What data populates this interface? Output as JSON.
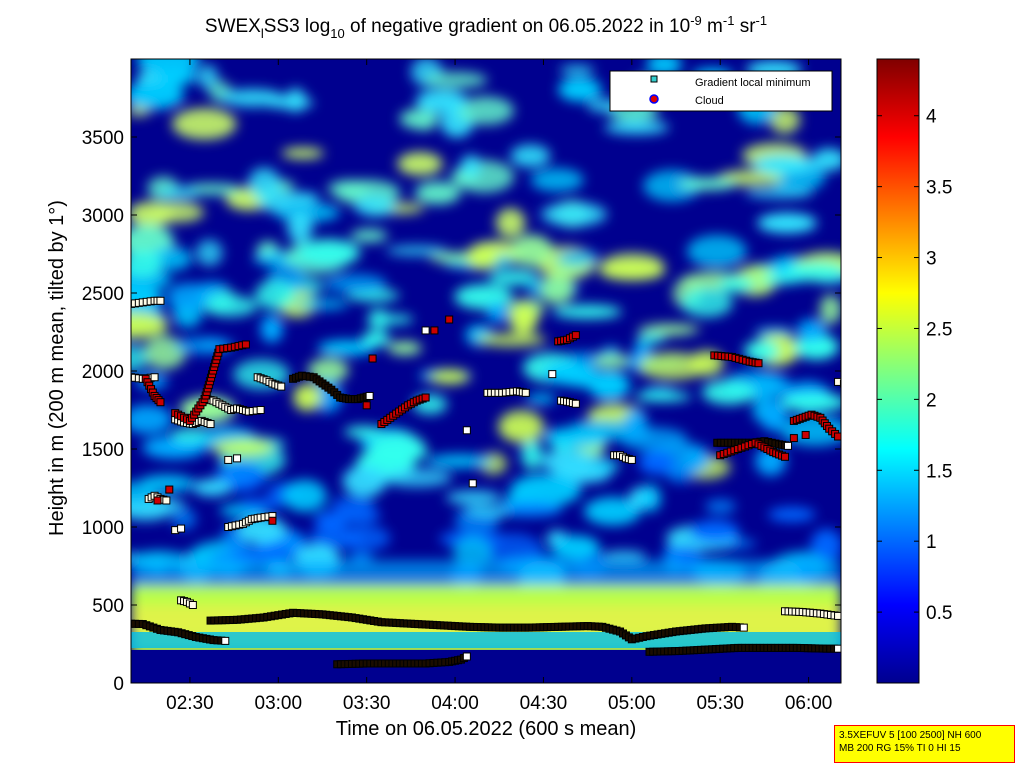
{
  "chart_data": {
    "type": "heatmap",
    "title": {
      "part1": "SWEX",
      "sub1": "l",
      "part2": "SS3 log",
      "sub2": "10",
      "part3": " of negative gradient on 06.05.2022 in 10",
      "sup1": "-9",
      "part4": " m",
      "sup2": "-1",
      "part5": " sr",
      "sup3": "-1"
    },
    "xlabel": "Time on 06.05.2022 (600 s mean)",
    "ylabel": "Height in m (200 m mean, tilted by 1°)",
    "x_range_minutes": [
      130,
      371
    ],
    "x_ticks": [
      {
        "label": "02:30",
        "minutes": 150
      },
      {
        "label": "03:00",
        "minutes": 180
      },
      {
        "label": "03:30",
        "minutes": 210
      },
      {
        "label": "04:00",
        "minutes": 240
      },
      {
        "label": "04:30",
        "minutes": 270
      },
      {
        "label": "05:00",
        "minutes": 300
      },
      {
        "label": "05:30",
        "minutes": 330
      },
      {
        "label": "06:00",
        "minutes": 360
      }
    ],
    "y_range": [
      0,
      4000
    ],
    "y_ticks": [
      0,
      500,
      1000,
      1500,
      2000,
      2500,
      3000,
      3500
    ],
    "colorbar": {
      "range": [
        0,
        4.4
      ],
      "ticks": [
        {
          "label": "0.5",
          "value": 0.5
        },
        {
          "label": "1",
          "value": 1
        },
        {
          "label": "1.5",
          "value": 1.5
        },
        {
          "label": "2",
          "value": 2
        },
        {
          "label": "2.5",
          "value": 2.5
        },
        {
          "label": "3",
          "value": 3
        },
        {
          "label": "3.5",
          "value": 3.5
        },
        {
          "label": "4",
          "value": 4
        }
      ],
      "colormap": "jet"
    },
    "legend": {
      "placement": "top-right",
      "entries": [
        {
          "label": "Gradient local minimum",
          "marker": "square",
          "color": "#33cccc"
        },
        {
          "label": "Cloud",
          "marker": "circle",
          "color": "#dd0000",
          "edge": "#0000ff"
        }
      ]
    },
    "series": [
      {
        "name": "Gradient local minimum",
        "traces": [
          {
            "pts": [
              [
                130,
                380
              ],
              [
                134,
                378
              ],
              [
                140,
                340
              ],
              [
                146,
                325
              ],
              [
                152,
                295
              ],
              [
                158,
                275
              ],
              [
                162,
                270
              ]
            ]
          },
          {
            "pts": [
              [
                157,
                400
              ],
              [
                166,
                405
              ],
              [
                175,
                420
              ],
              [
                185,
                450
              ],
              [
                195,
                440
              ],
              [
                205,
                420
              ],
              [
                215,
                390
              ],
              [
                225,
                380
              ],
              [
                235,
                370
              ],
              [
                245,
                360
              ],
              [
                255,
                355
              ],
              [
                265,
                355
              ],
              [
                275,
                360
              ],
              [
                285,
                365
              ],
              [
                290,
                360
              ],
              [
                296,
                330
              ],
              [
                300,
                280
              ],
              [
                305,
                300
              ],
              [
                315,
                330
              ],
              [
                325,
                350
              ],
              [
                334,
                360
              ],
              [
                338,
                355
              ]
            ]
          },
          {
            "pts": [
              [
                200,
                120
              ],
              [
                210,
                125
              ],
              [
                220,
                125
              ],
              [
                230,
                125
              ],
              [
                238,
                135
              ],
              [
                242,
                150
              ],
              [
                244,
                170
              ]
            ]
          },
          {
            "pts": [
              [
                306,
                200
              ],
              [
                316,
                205
              ],
              [
                326,
                215
              ],
              [
                336,
                225
              ],
              [
                346,
                225
              ],
              [
                356,
                225
              ],
              [
                366,
                220
              ],
              [
                370,
                220
              ]
            ]
          },
          {
            "pts": [
              [
                352,
                460
              ],
              [
                358,
                455
              ],
              [
                364,
                445
              ],
              [
                370,
                430
              ]
            ]
          },
          {
            "pts": [
              [
                130,
                1960
              ],
              [
                134,
                1950
              ],
              [
                138,
                1960
              ]
            ]
          },
          {
            "pts": [
              [
                130,
                2430
              ],
              [
                134,
                2440
              ],
              [
                138,
                2450
              ],
              [
                140,
                2450
              ]
            ]
          },
          {
            "pts": [
              [
                145,
                1690
              ],
              [
                148,
                1670
              ],
              [
                151,
                1660
              ],
              [
                154,
                1680
              ],
              [
                157,
                1660
              ]
            ]
          },
          {
            "pts": [
              [
                155,
                1820
              ],
              [
                158,
                1810
              ],
              [
                161,
                1780
              ],
              [
                164,
                1750
              ],
              [
                166,
                1760
              ],
              [
                170,
                1740
              ],
              [
                174,
                1750
              ]
            ]
          },
          {
            "pts": [
              [
                173,
                1960
              ],
              [
                176,
                1940
              ],
              [
                178,
                1920
              ],
              [
                181,
                1900
              ]
            ]
          },
          {
            "pts": [
              [
                185,
                1950
              ],
              [
                188,
                1970
              ],
              [
                192,
                1960
              ],
              [
                195,
                1920
              ],
              [
                198,
                1880
              ],
              [
                201,
                1830
              ],
              [
                204,
                1820
              ],
              [
                207,
                1820
              ],
              [
                211,
                1840
              ]
            ]
          },
          {
            "pts": [
              [
                251,
                1860
              ],
              [
                256,
                1860
              ],
              [
                261,
                1870
              ],
              [
                264,
                1860
              ]
            ]
          },
          {
            "pts": [
              [
                276,
                1810
              ],
              [
                279,
                1800
              ],
              [
                281,
                1790
              ]
            ]
          },
          {
            "pts": [
              [
                246,
                1280
              ]
            ]
          },
          {
            "pts": [
              [
                294,
                1460
              ],
              [
                296,
                1460
              ],
              [
                298,
                1440
              ],
              [
                300,
                1430
              ]
            ]
          },
          {
            "pts": [
              [
                329,
                1540
              ],
              [
                335,
                1540
              ],
              [
                341,
                1540
              ],
              [
                345,
                1550
              ],
              [
                350,
                1530
              ],
              [
                353,
                1520
              ]
            ]
          },
          {
            "pts": [
              [
                136,
                1180
              ],
              [
                138,
                1200
              ],
              [
                140,
                1180
              ],
              [
                142,
                1170
              ]
            ]
          },
          {
            "pts": [
              [
                145,
                980
              ],
              [
                147,
                990
              ]
            ]
          },
          {
            "pts": [
              [
                147,
                530
              ],
              [
                149,
                520
              ],
              [
                151,
                500
              ]
            ]
          },
          {
            "pts": [
              [
                163,
                1000
              ],
              [
                168,
                1020
              ],
              [
                171,
                1050
              ],
              [
                174,
                1060
              ],
              [
                178,
                1070
              ]
            ]
          },
          {
            "pts": [
              [
                163,
                1430
              ],
              [
                166,
                1440
              ]
            ]
          },
          {
            "pts": [
              [
                370,
                1930
              ],
              [
                372,
                1920
              ]
            ]
          },
          {
            "pts": [
              [
                230,
                2260
              ]
            ]
          },
          {
            "pts": [
              [
                244,
                1620
              ]
            ]
          },
          {
            "pts": [
              [
                273,
                1980
              ]
            ]
          }
        ]
      },
      {
        "name": "Cloud",
        "traces": [
          {
            "pts": [
              [
                135,
                1950
              ],
              [
                138,
                1840
              ],
              [
                140,
                1800
              ]
            ]
          },
          {
            "pts": [
              [
                139,
                1170
              ],
              [
                143,
                1240
              ]
            ]
          },
          {
            "pts": [
              [
                145,
                1730
              ],
              [
                150,
                1680
              ],
              [
                155,
                1820
              ],
              [
                160,
                2140
              ],
              [
                164,
                2150
              ],
              [
                169,
                2170
              ]
            ]
          },
          {
            "pts": [
              [
                210,
                1780
              ],
              [
                212,
                2080
              ]
            ]
          },
          {
            "pts": [
              [
                215,
                1660
              ],
              [
                218,
                1700
              ],
              [
                221,
                1740
              ],
              [
                224,
                1780
              ],
              [
                227,
                1810
              ],
              [
                230,
                1830
              ]
            ]
          },
          {
            "pts": [
              [
                233,
                2260
              ],
              [
                238,
                2330
              ]
            ]
          },
          {
            "pts": [
              [
                275,
                2190
              ],
              [
                278,
                2200
              ],
              [
                281,
                2230
              ]
            ]
          },
          {
            "pts": [
              [
                328,
                2100
              ],
              [
                334,
                2090
              ],
              [
                340,
                2060
              ],
              [
                343,
                2050
              ]
            ]
          },
          {
            "pts": [
              [
                330,
                1460
              ],
              [
                342,
                1540
              ],
              [
                348,
                1480
              ],
              [
                352,
                1450
              ]
            ]
          },
          {
            "pts": [
              [
                355,
                1680
              ],
              [
                358,
                1700
              ],
              [
                361,
                1720
              ],
              [
                364,
                1700
              ],
              [
                367,
                1630
              ],
              [
                370,
                1580
              ]
            ]
          },
          {
            "pts": [
              [
                355,
                1570
              ],
              [
                359,
                1590
              ]
            ]
          },
          {
            "pts": [
              [
                178,
                1040
              ]
            ]
          }
        ]
      }
    ]
  },
  "info_box": {
    "line1": "3.5XEFUV 5 [100 2500] NH 600",
    "line2": "MB 200 RG 15% TI 0 HI 15"
  }
}
